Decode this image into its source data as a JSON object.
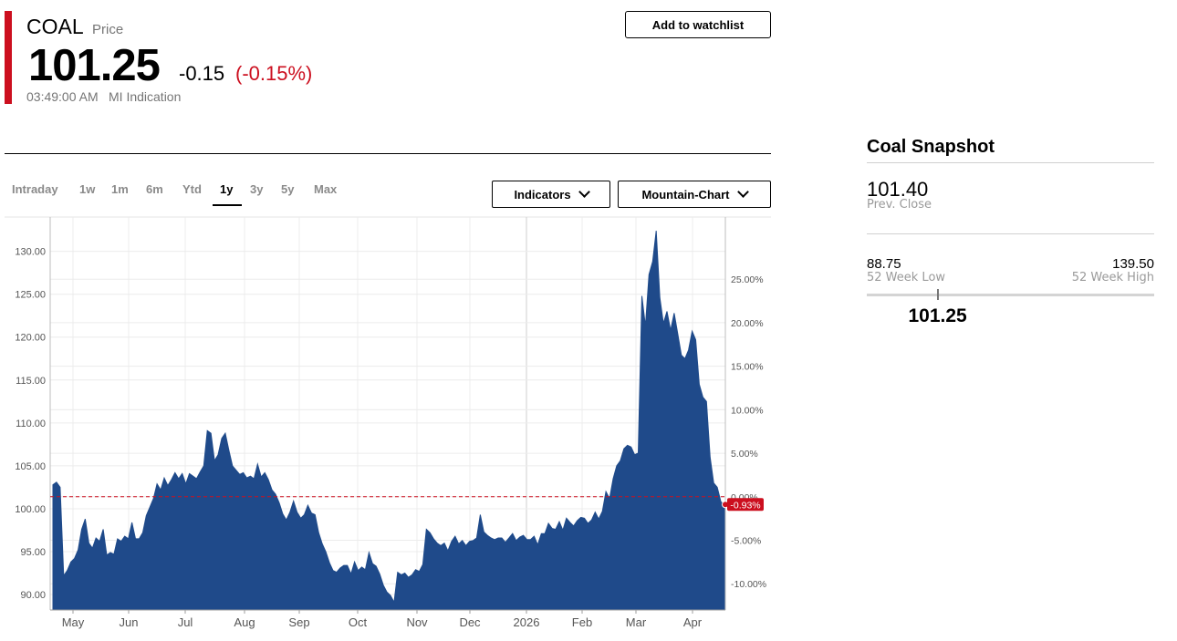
{
  "quote": {
    "symbol": "COAL",
    "price_label": "Price",
    "last": "101.25",
    "change": "-0.15",
    "change_pct": "(-0.15%)",
    "time": "03:49:00 AM",
    "source": "MI Indication"
  },
  "actions": {
    "watchlist": "Add to watchlist"
  },
  "toolbar": {
    "ranges": [
      "Intraday",
      "1w",
      "1m",
      "6m",
      "Ytd",
      "1y",
      "3y",
      "5y",
      "Max"
    ],
    "active_range": "1y",
    "indicators": "Indicators",
    "chart_type": "Mountain-Chart"
  },
  "colors": {
    "accent": "#cc0f1f",
    "area": "#1f4a8a",
    "reference": "#cc0f1f"
  },
  "chart_data": {
    "type": "area",
    "x_tick_labels": [
      "May",
      "Jun",
      "Jul",
      "Aug",
      "Sep",
      "Oct",
      "Nov",
      "Dec",
      "2026",
      "Feb",
      "Mar",
      "Apr"
    ],
    "y_left_ticks": [
      "130.00",
      "125.00",
      "120.00",
      "115.00",
      "110.00",
      "105.00",
      "100.00",
      "95.00",
      "90.00"
    ],
    "y_right_ticks": [
      "25.00%",
      "20.00%",
      "15.00%",
      "10.00%",
      "5.00%",
      "0.00%",
      "-5.00%",
      "-10.00%"
    ],
    "ylim": [
      88.2,
      134
    ],
    "reference_value": 101.4,
    "last_marker_label": "-0.93%",
    "grid": true,
    "series": [
      {
        "values": [
          102.8,
          103.1,
          102.5,
          92.2,
          92.8,
          93.8,
          94.2,
          95.2,
          97.6,
          98.8,
          96.0,
          95.4,
          96.6,
          96.2,
          97.6,
          94.6,
          94.9,
          94.7,
          96.5,
          96.2,
          96.8,
          96.5,
          98.4,
          96.5,
          96.5,
          97.2,
          99.2,
          100.2,
          101.2,
          102.9,
          102.2,
          103.6,
          102.7,
          103.4,
          104.2,
          103.5,
          104.1,
          102.9,
          104.1,
          103.8,
          103.5,
          104.3,
          105.0,
          109.1,
          108.8,
          105.6,
          106.3,
          108.2,
          108.8,
          106.8,
          105.0,
          104.5,
          104.0,
          104.2,
          103.6,
          103.8,
          103.5,
          105.2,
          103.7,
          104.2,
          103.4,
          102.2,
          101.7,
          100.7,
          99.4,
          98.7,
          99.6,
          100.9,
          99.6,
          98.9,
          99.3,
          100.4,
          99.5,
          99.3,
          97.2,
          95.9,
          95.0,
          93.7,
          92.8,
          92.6,
          93.1,
          93.4,
          93.4,
          92.4,
          93.8,
          92.8,
          93.2,
          92.9,
          94.9,
          93.6,
          93.3,
          92.4,
          91.1,
          90.3,
          89.9,
          89.1,
          92.6,
          92.3,
          92.5,
          92.0,
          92.3,
          92.9,
          92.7,
          93.5,
          97.6,
          97.2,
          96.5,
          96.0,
          95.7,
          96.0,
          95.1,
          96.2,
          96.8,
          95.9,
          96.3,
          95.7,
          96.2,
          96.3,
          96.6,
          99.3,
          97.3,
          96.9,
          96.6,
          96.4,
          96.6,
          96.6,
          96.1,
          96.6,
          97.1,
          96.3,
          96.7,
          96.9,
          96.4,
          96.4,
          96.8,
          95.8,
          97.1,
          97.1,
          98.3,
          97.7,
          97.6,
          98.5,
          97.5,
          98.9,
          98.4,
          98.0,
          98.6,
          99.0,
          98.9,
          98.3,
          98.7,
          99.6,
          98.8,
          99.7,
          102.0,
          101.2,
          103.5,
          105.0,
          105.6,
          107.0,
          107.4,
          107.2,
          106.3,
          106.5,
          124.8,
          121.3,
          127.3,
          128.8,
          132.4,
          124.6,
          121.6,
          123.0,
          120.8,
          122.8,
          120.4,
          117.9,
          117.5,
          118.5,
          120.7,
          119.7,
          114.5,
          113.0,
          112.5,
          106.0,
          103.0,
          102.5,
          100.8,
          100.5
        ]
      }
    ]
  },
  "snapshot": {
    "title": "Coal Snapshot",
    "prev_close": "101.40",
    "prev_close_label": "Prev. Close",
    "low": "88.75",
    "low_label": "52 Week Low",
    "high": "139.50",
    "high_label": "52 Week High",
    "current": "101.25",
    "low_value": 88.75,
    "high_value": 139.5,
    "current_value": 101.25
  }
}
